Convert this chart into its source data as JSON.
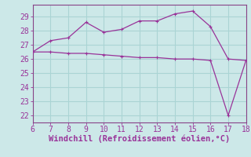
{
  "xlabel": "Windchill (Refroidissement éolien,°C)",
  "background_color": "#cce8e8",
  "grid_color": "#aad4d4",
  "line_color": "#993399",
  "spine_color": "#884488",
  "xlim": [
    6,
    18
  ],
  "ylim": [
    21.5,
    29.85
  ],
  "xticks": [
    6,
    7,
    8,
    9,
    10,
    11,
    12,
    13,
    14,
    15,
    16,
    17,
    18
  ],
  "yticks": [
    22,
    23,
    24,
    25,
    26,
    27,
    28,
    29
  ],
  "line1_x": [
    6,
    7,
    8,
    9,
    10,
    11,
    12,
    13,
    14,
    15,
    16,
    17,
    18
  ],
  "line1_y": [
    26.5,
    27.3,
    27.5,
    28.6,
    27.9,
    28.1,
    28.7,
    28.7,
    29.2,
    29.4,
    28.3,
    26.0,
    25.9
  ],
  "line2_x": [
    6,
    7,
    8,
    9,
    10,
    11,
    12,
    13,
    14,
    15,
    16,
    17,
    18
  ],
  "line2_y": [
    26.5,
    26.5,
    26.4,
    26.4,
    26.3,
    26.2,
    26.1,
    26.1,
    26.0,
    26.0,
    25.9,
    22.0,
    25.9
  ],
  "tick_fontsize": 7,
  "xlabel_fontsize": 7.5
}
